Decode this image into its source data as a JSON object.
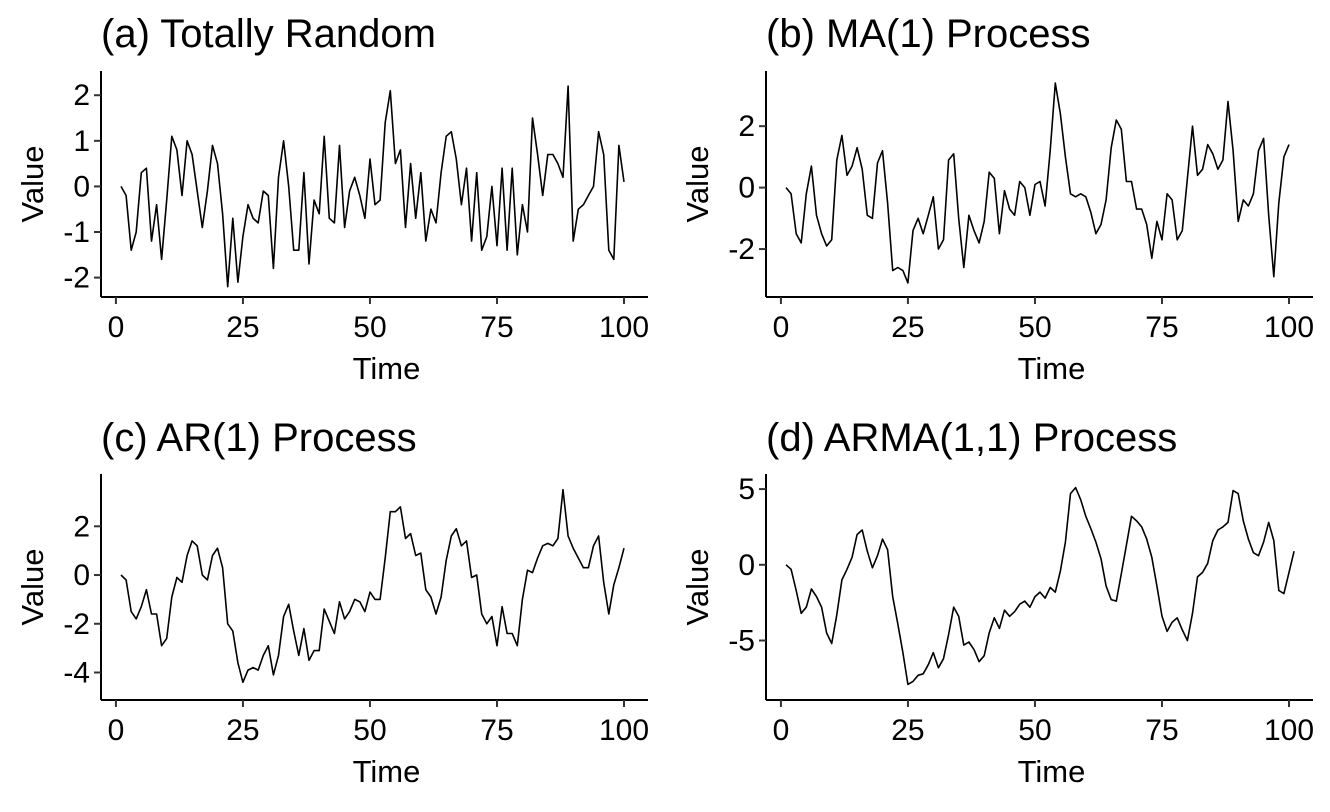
{
  "chart_data": [
    {
      "type": "line",
      "title": "(a) Totally Random",
      "xlabel": "Time",
      "ylabel": "Value",
      "xlim": [
        1,
        100
      ],
      "ylim": [
        -2.25,
        2.4
      ],
      "xticks": [
        0,
        25,
        50,
        75,
        100
      ],
      "yticks": [
        -2,
        -1,
        0,
        1,
        2
      ],
      "series": [
        {
          "x_start": 1,
          "values": [
            0.0,
            -0.2,
            -1.4,
            -1.0,
            0.3,
            0.4,
            -1.2,
            -0.4,
            -1.6,
            -0.3,
            1.1,
            0.8,
            -0.2,
            1.0,
            0.7,
            -0.1,
            -0.9,
            -0.1,
            0.9,
            0.5,
            -0.6,
            -2.2,
            -0.7,
            -2.1,
            -1.1,
            -0.4,
            -0.7,
            -0.8,
            -0.1,
            -0.2,
            -1.8,
            0.2,
            1.0,
            0.0,
            -1.4,
            -1.4,
            0.3,
            -1.7,
            -0.3,
            -0.6,
            1.1,
            -0.7,
            -0.8,
            0.9,
            -0.9,
            -0.1,
            0.2,
            -0.2,
            -0.7,
            0.6,
            -0.4,
            -0.3,
            1.4,
            2.1,
            0.5,
            0.8,
            -0.9,
            0.5,
            -0.7,
            0.3,
            -1.2,
            -0.5,
            -0.8,
            0.3,
            1.1,
            1.2,
            0.6,
            -0.4,
            0.4,
            -1.2,
            0.3,
            -1.4,
            -1.1,
            0.0,
            -1.3,
            0.4,
            -1.4,
            0.4,
            -1.5,
            -0.4,
            -1.0,
            1.5,
            0.7,
            -0.2,
            0.7,
            0.7,
            0.5,
            0.2,
            2.2,
            -1.2,
            -0.5,
            -0.4,
            -0.2,
            0.0,
            1.2,
            0.7,
            -1.4,
            -1.6,
            0.9,
            0.1
          ]
        }
      ]
    },
    {
      "type": "line",
      "title": "(b) MA(1) Process",
      "xlabel": "Time",
      "ylabel": "Value",
      "xlim": [
        1,
        100
      ],
      "ylim": [
        -3.3,
        3.6
      ],
      "xticks": [
        0,
        25,
        50,
        75,
        100
      ],
      "yticks": [
        -2,
        0,
        2
      ],
      "series": [
        {
          "x_start": 1,
          "values": [
            0.0,
            -0.2,
            -1.5,
            -1.8,
            -0.2,
            0.7,
            -0.9,
            -1.5,
            -1.9,
            -1.7,
            0.9,
            1.7,
            0.4,
            0.7,
            1.3,
            0.6,
            -0.9,
            -1.0,
            0.8,
            1.2,
            -0.5,
            -2.7,
            -2.6,
            -2.7,
            -3.1,
            -1.4,
            -1.0,
            -1.5,
            -0.9,
            -0.3,
            -2.0,
            -1.7,
            0.9,
            1.1,
            -1.0,
            -2.6,
            -0.9,
            -1.4,
            -1.8,
            -1.1,
            0.5,
            0.3,
            -1.5,
            -0.1,
            -0.7,
            -0.9,
            0.2,
            0.0,
            -0.9,
            0.1,
            0.2,
            -0.6,
            1.2,
            3.4,
            2.4,
            1.0,
            -0.2,
            -0.3,
            -0.2,
            -0.3,
            -0.8,
            -1.5,
            -1.2,
            -0.4,
            1.3,
            2.2,
            1.9,
            0.2,
            0.2,
            -0.7,
            -0.7,
            -1.2,
            -2.3,
            -1.1,
            -1.7,
            -0.2,
            -0.4,
            -1.7,
            -1.4,
            0.3,
            2.0,
            0.4,
            0.6,
            1.4,
            1.1,
            0.6,
            0.9,
            2.8,
            1.2,
            -1.1,
            -0.4,
            -0.6,
            -0.2,
            1.2,
            1.6,
            -0.9,
            -2.9,
            -0.5,
            1.0,
            1.4
          ]
        }
      ]
    },
    {
      "type": "line",
      "title": "(c) AR(1) Process",
      "xlabel": "Time",
      "ylabel": "Value",
      "xlim": [
        1,
        100
      ],
      "ylim": [
        -4.8,
        3.9
      ],
      "xticks": [
        0,
        25,
        50,
        75,
        100
      ],
      "yticks": [
        -4,
        -2,
        0,
        2
      ],
      "series": [
        {
          "x_start": 1,
          "values": [
            0.0,
            -0.2,
            -1.5,
            -1.8,
            -1.3,
            -0.6,
            -1.6,
            -1.6,
            -2.9,
            -2.6,
            -0.9,
            -0.1,
            -0.3,
            0.8,
            1.4,
            1.2,
            0.0,
            -0.2,
            0.8,
            1.1,
            0.3,
            -2.0,
            -2.3,
            -3.6,
            -4.4,
            -3.9,
            -3.8,
            -3.9,
            -3.3,
            -2.9,
            -4.1,
            -3.3,
            -1.7,
            -1.2,
            -2.3,
            -3.3,
            -2.2,
            -3.5,
            -3.1,
            -3.1,
            -1.4,
            -1.9,
            -2.4,
            -1.1,
            -1.8,
            -1.5,
            -1.0,
            -1.1,
            -1.5,
            -0.7,
            -1.0,
            -1.0,
            0.7,
            2.6,
            2.6,
            2.8,
            1.5,
            1.7,
            0.8,
            0.9,
            -0.6,
            -0.9,
            -1.6,
            -0.9,
            0.6,
            1.6,
            1.9,
            1.2,
            1.4,
            -0.1,
            0.0,
            -1.6,
            -2.0,
            -1.7,
            -2.9,
            -1.3,
            -2.4,
            -2.4,
            -2.9,
            -1.0,
            0.2,
            0.1,
            0.7,
            1.2,
            1.3,
            1.2,
            1.5,
            3.5,
            1.6,
            1.1,
            0.7,
            0.3,
            0.3,
            1.2,
            1.6,
            -0.3,
            -1.6,
            -0.4,
            0.3,
            1.1
          ]
        }
      ]
    },
    {
      "type": "line",
      "title": "(d) ARMA(1,1) Process",
      "xlabel": "Time",
      "ylabel": "Value",
      "xlim": [
        1,
        100
      ],
      "ylim": [
        -8.4,
        5.6
      ],
      "xticks": [
        0,
        25,
        50,
        75,
        100
      ],
      "yticks": [
        -5,
        0,
        5
      ],
      "series": [
        {
          "x_start": 1,
          "values": [
            0.0,
            -0.3,
            -1.7,
            -3.2,
            -2.8,
            -1.6,
            -2.1,
            -2.8,
            -4.5,
            -5.2,
            -3.3,
            -1.0,
            -0.3,
            0.5,
            2.0,
            2.3,
            0.9,
            -0.2,
            0.6,
            1.7,
            1.0,
            -2.1,
            -3.9,
            -5.8,
            -7.9,
            -7.7,
            -7.3,
            -7.2,
            -6.6,
            -5.8,
            -6.8,
            -6.2,
            -4.6,
            -2.8,
            -3.4,
            -5.3,
            -5.1,
            -5.6,
            -6.4,
            -6.0,
            -4.5,
            -3.5,
            -4.2,
            -3.0,
            -3.4,
            -3.1,
            -2.6,
            -2.4,
            -2.8,
            -2.1,
            -1.8,
            -2.2,
            -1.5,
            -1.8,
            -0.4,
            1.5,
            4.7,
            5.1,
            4.3,
            3.2,
            2.4,
            1.5,
            0.4,
            -1.4,
            -2.3,
            -2.4,
            -0.6,
            1.3,
            3.2,
            2.9,
            2.5,
            1.7,
            0.5,
            -1.4,
            -3.4,
            -4.4,
            -3.8,
            -3.5,
            -4.3,
            -5.0,
            -3.2,
            -0.8,
            -0.5,
            0.1,
            1.6,
            2.3,
            2.5,
            2.8,
            4.9,
            4.7,
            2.9,
            1.7,
            0.8,
            0.6,
            1.5,
            2.8,
            1.6,
            -1.7,
            -1.9,
            -0.5,
            0.9
          ]
        }
      ]
    }
  ]
}
